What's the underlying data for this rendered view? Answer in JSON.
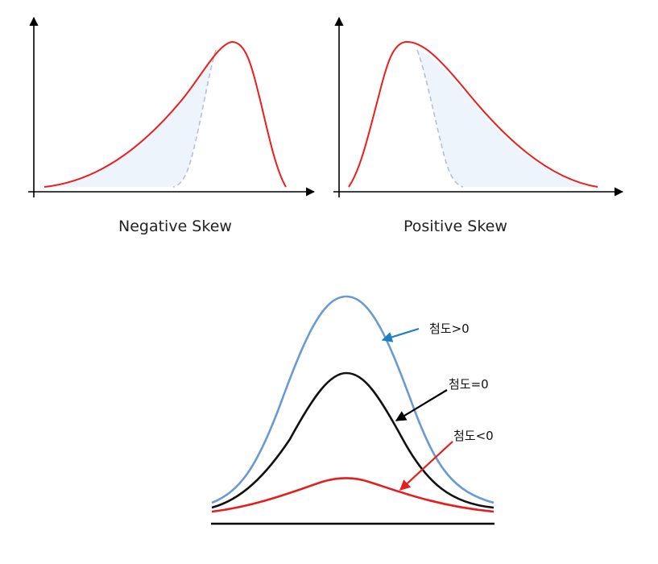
{
  "skewness": {
    "negative_caption": "Negative Skew",
    "positive_caption": "Positive Skew"
  },
  "kurtosis": {
    "label_positive": "첨도>0",
    "label_zero": "첨도=0",
    "label_negative": "첨도<0"
  },
  "colors": {
    "skew_curve": "#ee1c1c",
    "fill": "#eef4fb",
    "dashed": "#b9bfd0",
    "axis": "#000000",
    "kurt_positive": "#6a9bd0",
    "kurt_zero": "#111111",
    "kurt_negative": "#e51d1d",
    "arrow_positive": "#1f7fc4",
    "arrow_zero": "#000000",
    "arrow_negative": "#e51d1d"
  }
}
